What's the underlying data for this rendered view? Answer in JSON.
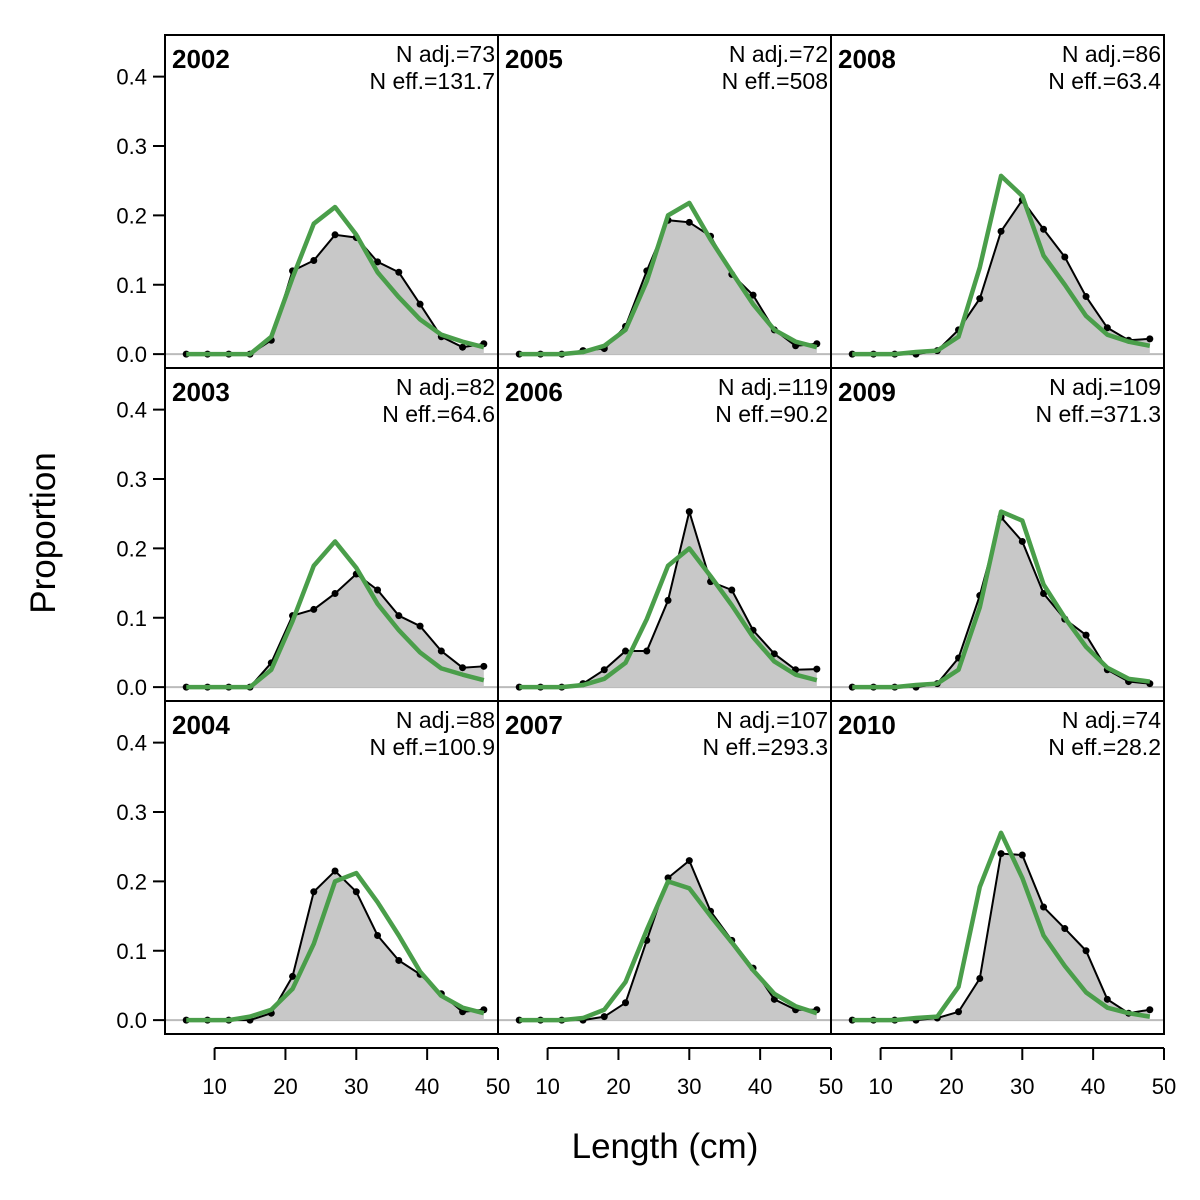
{
  "chart_data": {
    "type": "area",
    "xlabel": "Length (cm)",
    "ylabel": "Proportion",
    "xlim": [
      3,
      50
    ],
    "ylim": [
      -0.02,
      0.46
    ],
    "x_ticks": [
      10,
      20,
      30,
      40,
      50
    ],
    "y_ticks": [
      0.0,
      0.1,
      0.2,
      0.3,
      0.4
    ],
    "y_tick_labels": [
      "0.0",
      "0.1",
      "0.2",
      "0.3",
      "0.4"
    ],
    "grid": false,
    "layout": {
      "rows": 3,
      "cols": 3,
      "order": "column-major"
    },
    "colors": {
      "observed_fill": "#c8c8c8",
      "observed_line": "#000000",
      "expected_line": "#4a9e4a",
      "zero_line": "#bbbbbb"
    },
    "x": [
      6,
      9,
      12,
      15,
      18,
      21,
      24,
      27,
      30,
      33,
      36,
      39,
      42,
      45,
      48
    ],
    "panels": [
      {
        "year": "2002",
        "n_adj": "N adj.=73",
        "n_eff": "N eff.=131.7",
        "observed": [
          0,
          0,
          0,
          0,
          0.02,
          0.12,
          0.135,
          0.172,
          0.168,
          0.133,
          0.118,
          0.072,
          0.025,
          0.01,
          0.015
        ],
        "expected": [
          0,
          0,
          0,
          0,
          0.025,
          0.11,
          0.188,
          0.212,
          0.172,
          0.118,
          0.082,
          0.05,
          0.028,
          0.018,
          0.01
        ]
      },
      {
        "year": "2003",
        "n_adj": "N adj.=82",
        "n_eff": "N eff.=64.6",
        "observed": [
          0,
          0,
          0,
          0,
          0.035,
          0.103,
          0.112,
          0.135,
          0.163,
          0.14,
          0.103,
          0.088,
          0.052,
          0.028,
          0.03
        ],
        "expected": [
          0,
          0,
          0,
          0,
          0.025,
          0.095,
          0.175,
          0.21,
          0.172,
          0.12,
          0.082,
          0.05,
          0.027,
          0.018,
          0.01
        ]
      },
      {
        "year": "2004",
        "n_adj": "N adj.=88",
        "n_eff": "N eff.=100.9",
        "observed": [
          0,
          0,
          0,
          0,
          0.01,
          0.063,
          0.185,
          0.215,
          0.185,
          0.122,
          0.086,
          0.066,
          0.038,
          0.012,
          0.015
        ],
        "expected": [
          0,
          0,
          0,
          0.005,
          0.015,
          0.045,
          0.11,
          0.2,
          0.212,
          0.17,
          0.122,
          0.07,
          0.035,
          0.018,
          0.01
        ]
      },
      {
        "year": "2005",
        "n_adj": "N adj.=72",
        "n_eff": "N eff.=508",
        "observed": [
          0,
          0,
          0,
          0.005,
          0.008,
          0.04,
          0.12,
          0.193,
          0.19,
          0.17,
          0.115,
          0.085,
          0.035,
          0.012,
          0.015
        ],
        "expected": [
          0,
          0,
          0,
          0.003,
          0.012,
          0.035,
          0.105,
          0.2,
          0.218,
          0.165,
          0.118,
          0.072,
          0.035,
          0.018,
          0.01
        ]
      },
      {
        "year": "2006",
        "n_adj": "N adj.=119",
        "n_eff": "N eff.=90.2",
        "observed": [
          0,
          0,
          0,
          0.005,
          0.025,
          0.052,
          0.052,
          0.125,
          0.253,
          0.152,
          0.14,
          0.082,
          0.048,
          0.025,
          0.026
        ],
        "expected": [
          0,
          0,
          0,
          0.003,
          0.012,
          0.035,
          0.098,
          0.175,
          0.2,
          0.16,
          0.118,
          0.072,
          0.037,
          0.018,
          0.01
        ]
      },
      {
        "year": "2007",
        "n_adj": "N adj.=107",
        "n_eff": "N eff.=293.3",
        "observed": [
          0,
          0,
          0,
          0,
          0.005,
          0.025,
          0.115,
          0.205,
          0.23,
          0.157,
          0.115,
          0.075,
          0.03,
          0.015,
          0.015
        ],
        "expected": [
          0,
          0,
          0,
          0.003,
          0.015,
          0.055,
          0.13,
          0.2,
          0.19,
          0.15,
          0.112,
          0.072,
          0.038,
          0.02,
          0.01
        ]
      },
      {
        "year": "2008",
        "n_adj": "N adj.=86",
        "n_eff": "N eff.=63.4",
        "observed": [
          0,
          0,
          0,
          0,
          0.005,
          0.035,
          0.08,
          0.177,
          0.222,
          0.18,
          0.14,
          0.083,
          0.038,
          0.02,
          0.022
        ],
        "expected": [
          0,
          0,
          0,
          0.003,
          0.005,
          0.025,
          0.125,
          0.257,
          0.228,
          0.142,
          0.1,
          0.055,
          0.028,
          0.018,
          0.012
        ]
      },
      {
        "year": "2009",
        "n_adj": "N adj.=109",
        "n_eff": "N eff.=371.3",
        "observed": [
          0,
          0,
          0,
          0,
          0.005,
          0.042,
          0.132,
          0.245,
          0.21,
          0.135,
          0.098,
          0.075,
          0.025,
          0.008,
          0.005
        ],
        "expected": [
          0,
          0,
          0,
          0.003,
          0.005,
          0.025,
          0.115,
          0.253,
          0.24,
          0.148,
          0.1,
          0.058,
          0.028,
          0.012,
          0.008
        ]
      },
      {
        "year": "2010",
        "n_adj": "N adj.=74",
        "n_eff": "N eff.=28.2",
        "observed": [
          0,
          0,
          0,
          0,
          0.003,
          0.012,
          0.06,
          0.24,
          0.238,
          0.163,
          0.132,
          0.1,
          0.03,
          0.01,
          0.015
        ],
        "expected": [
          0,
          0,
          0,
          0.003,
          0.005,
          0.048,
          0.192,
          0.27,
          0.205,
          0.122,
          0.078,
          0.04,
          0.018,
          0.01,
          0.005
        ]
      }
    ]
  }
}
